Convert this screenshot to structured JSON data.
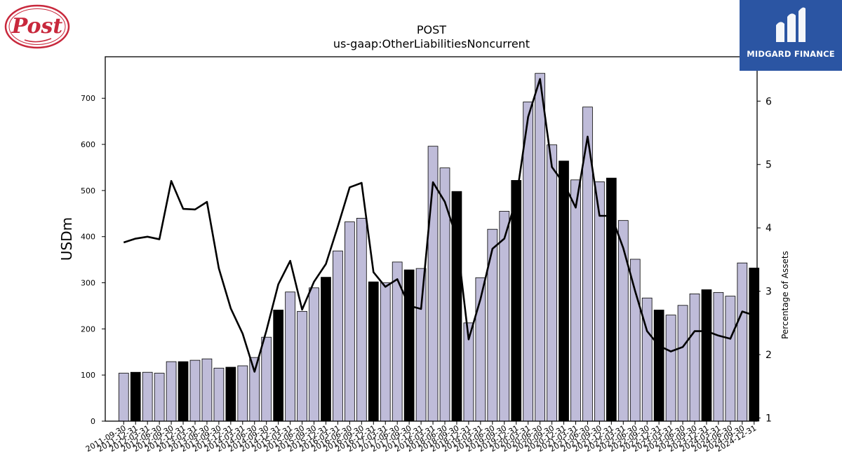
{
  "brand": {
    "left_logo_text": "Post",
    "right_logo_text": "MIDGARD FINANCE",
    "right_logo_bg": "#2b55a3",
    "left_logo_color": "#c8283c"
  },
  "chart_data": {
    "type": "bar",
    "title": "POST",
    "subtitle": "us-gaap:OtherLiabilitiesNoncurrent",
    "ylabel": "USDm",
    "y2label": "Percentage of Assets",
    "ylim": [
      0,
      790
    ],
    "y2lim": [
      0.95,
      6.7
    ],
    "yticks": [
      0,
      100,
      200,
      300,
      400,
      500,
      600,
      700
    ],
    "y2ticks": [
      1,
      2,
      3,
      4,
      5,
      6
    ],
    "bar_colors": {
      "quarter": "#bfbcd9",
      "year_end": "#000000"
    },
    "line_color": "#000000",
    "categories": [
      "2011-09-30",
      "2011-12-31",
      "2012-03-31",
      "2012-06-30",
      "2012-09-30",
      "2012-12-31",
      "2013-03-31",
      "2013-06-30",
      "2013-09-30",
      "2013-12-31",
      "2014-03-31",
      "2014-06-30",
      "2014-09-30",
      "2014-12-31",
      "2015-03-31",
      "2015-06-30",
      "2015-09-30",
      "2015-12-31",
      "2016-03-31",
      "2016-06-30",
      "2016-09-30",
      "2016-12-31",
      "2017-03-31",
      "2017-06-30",
      "2017-09-30",
      "2017-12-31",
      "2018-03-31",
      "2018-06-30",
      "2018-09-30",
      "2018-12-31",
      "2019-03-31",
      "2019-06-30",
      "2019-09-30",
      "2019-12-31",
      "2020-03-31",
      "2020-06-30",
      "2020-09-30",
      "2020-12-31",
      "2021-03-31",
      "2021-06-30",
      "2021-09-30",
      "2021-12-31",
      "2022-03-31",
      "2022-06-30",
      "2022-09-30",
      "2022-12-31",
      "2023-03-31",
      "2023-06-30",
      "2023-09-30",
      "2023-12-31",
      "2024-03-31",
      "2024-06-30",
      "2024-09-30",
      "2024-12-31"
    ],
    "year_end_index": [
      1,
      5,
      9,
      13,
      17,
      21,
      24,
      28,
      33,
      37,
      41,
      45,
      49,
      53
    ],
    "series": [
      {
        "name": "OtherLiabilitiesNoncurrent",
        "type": "bar",
        "values": [
          104,
          106,
          106,
          104,
          129,
          129,
          132,
          135,
          115,
          117,
          120,
          138,
          182,
          241,
          280,
          238,
          289,
          312,
          369,
          432,
          440,
          302,
          300,
          345,
          328,
          331,
          596,
          549,
          498,
          213,
          311,
          416,
          455,
          522,
          692,
          754,
          599,
          564,
          523,
          681,
          519,
          527,
          435,
          351,
          267,
          241,
          230,
          251,
          276,
          285,
          279,
          271,
          343,
          332
        ]
      },
      {
        "name": "Percentage of Assets",
        "type": "line",
        "axis": "right",
        "values": [
          3.77,
          3.83,
          3.86,
          3.82,
          4.74,
          4.3,
          4.29,
          4.41,
          3.36,
          2.73,
          2.33,
          1.73,
          2.38,
          3.11,
          3.48,
          2.71,
          3.15,
          3.43,
          4.02,
          4.64,
          4.71,
          3.3,
          3.07,
          3.19,
          2.77,
          2.72,
          4.72,
          4.41,
          3.84,
          2.24,
          2.88,
          3.67,
          3.83,
          4.45,
          5.75,
          6.35,
          4.96,
          4.7,
          4.32,
          5.44,
          4.19,
          4.19,
          3.68,
          3.0,
          2.37,
          2.14,
          2.05,
          2.12,
          2.37,
          2.37,
          2.3,
          2.25,
          2.68,
          2.62
        ]
      }
    ]
  }
}
